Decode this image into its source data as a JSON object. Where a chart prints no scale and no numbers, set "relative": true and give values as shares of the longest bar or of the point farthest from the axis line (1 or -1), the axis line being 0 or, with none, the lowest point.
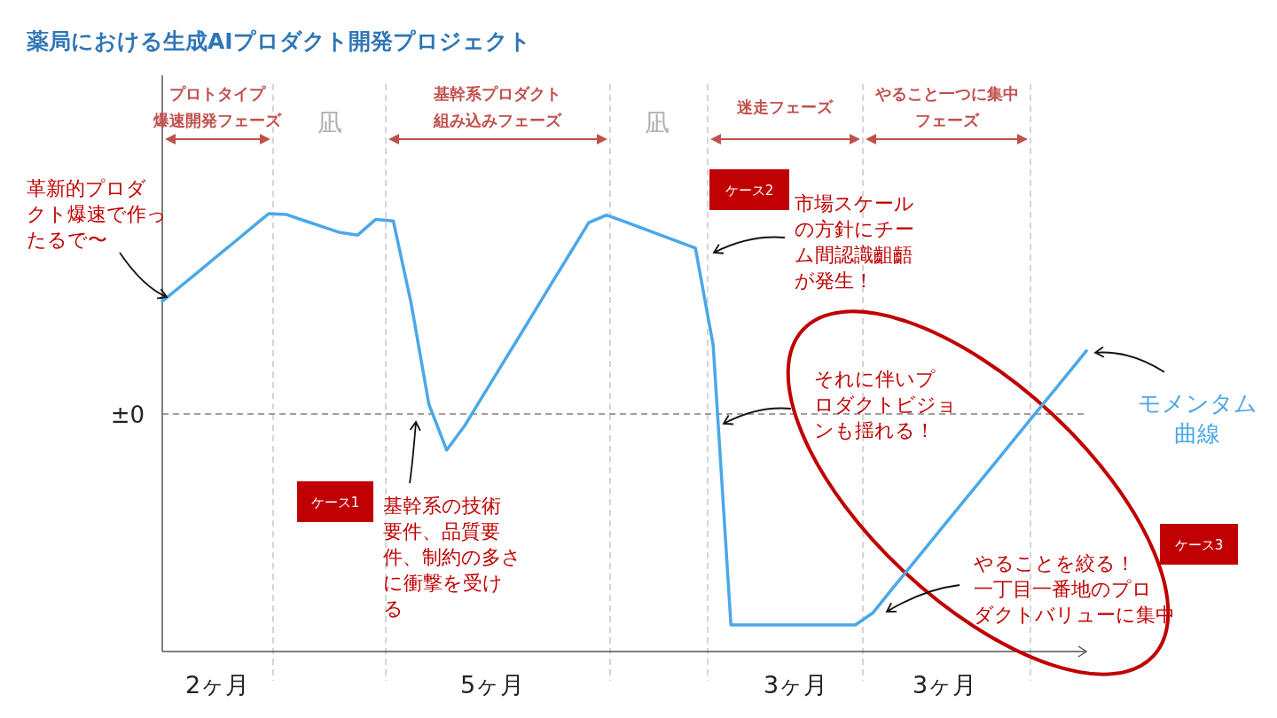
{
  "chart_data": {
    "type": "line",
    "title": "薬局における生成AIプロダクト開発プロジェクト",
    "relative": true,
    "categories": [
      null,
      null,
      null,
      null,
      null,
      null,
      null,
      null,
      null,
      null,
      null,
      null,
      null,
      null,
      null,
      null,
      null,
      null,
      null,
      null,
      null,
      null,
      null,
      null,
      null,
      null,
      null,
      null,
      null,
      null,
      null,
      null,
      null,
      null,
      null,
      null,
      null,
      null,
      null,
      null,
      null,
      null,
      null,
      null,
      null,
      null,
      null,
      null,
      null,
      null,
      null,
      null,
      null
    ],
    "series": [
      {
        "name": "モメンタム曲線",
        "color": "#4aa8e8",
        "values": [
          0.534,
          0.603,
          0.672,
          0.742,
          0.811,
          0.881,
          0.95,
          0.945,
          0.916,
          0.888,
          0.86,
          0.848,
          0.922,
          0.915,
          0.527,
          0.047,
          -0.171,
          -0.058,
          0.08,
          0.218,
          0.355,
          0.493,
          0.632,
          0.769,
          0.907,
          0.943,
          0.912,
          0.881,
          0.849,
          0.818,
          0.786,
          0.327,
          -1.0,
          -1.0,
          -1.0,
          -1.0,
          -1.0,
          -1.0,
          -1.0,
          -1.0,
          -0.942,
          -0.837,
          -0.734,
          -0.631,
          -0.527,
          -0.424,
          -0.321,
          -0.218,
          -0.114,
          -0.011,
          0.092,
          0.195,
          0.299
        ]
      }
    ],
    "ref_lines": [
      {
        "axis": "y",
        "value": 0,
        "label": "±0",
        "color": "#808080",
        "line_style": "dashed"
      }
    ],
    "annotations": [
      "プロトタイプ爆速開発フェーズ",
      "凪",
      "基幹系プロダクト組み込みフェーズ",
      "凪",
      "迷走フェーズ",
      "やること一つに集中フェーズ",
      "2ヶ月",
      "5ヶ月",
      "3ヶ月",
      "3ヶ月",
      "革新的プロダクト爆速で作ったるで〜",
      "市場スケールの方針にチーム間認識齟齬が発生！",
      "それに伴いプロダクトビジョンも揺れる！",
      "基幹系の技術要件、品質要件、制約の多さに衝撃を受ける",
      "やることを絞る！一丁目一番地のプロダクトバリューに集中",
      "ケース1",
      "ケース2",
      "ケース3"
    ]
  }
}
